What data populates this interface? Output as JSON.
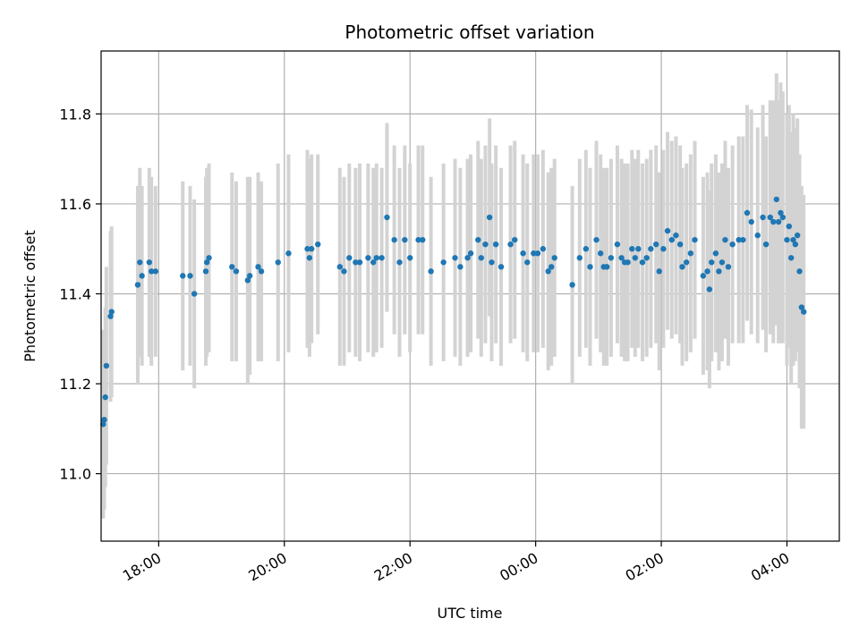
{
  "chart_data": {
    "type": "scatter",
    "title": "Photometric offset variation",
    "xlabel": "UTC time",
    "ylabel": "Photometric offset",
    "x_axis": {
      "unit": "UTC hours",
      "range": [
        "17:05",
        "04:50 (+1 day)"
      ],
      "ticks": [
        "18:00",
        "20:00",
        "22:00",
        "00:00",
        "02:00",
        "04:00"
      ]
    },
    "ylim": [
      10.85,
      11.94
    ],
    "yticks": [
      "11.0",
      "11.2",
      "11.4",
      "11.6",
      "11.8"
    ],
    "grid": true,
    "colors": {
      "point": "#1f77b4",
      "errorbar": "#d3d3d3",
      "grid": "#b0b0b0"
    },
    "series": [
      {
        "point_color": "#1f77b4",
        "errorbar_color": "#d3d3d3",
        "points": [
          [
            "17:07",
            11.11,
            0.21
          ],
          [
            "17:08",
            11.12,
            0.2
          ],
          [
            "17:09",
            11.17,
            0.2
          ],
          [
            "17:10",
            11.24,
            0.22
          ],
          [
            "17:14",
            11.35,
            0.19
          ],
          [
            "17:15",
            11.36,
            0.19
          ],
          [
            "17:40",
            11.42,
            0.22
          ],
          [
            "17:42",
            11.47,
            0.21
          ],
          [
            "17:44",
            11.44,
            0.2
          ],
          [
            "17:51",
            11.47,
            0.21
          ],
          [
            "17:53",
            11.45,
            0.21
          ],
          [
            "17:57",
            11.45,
            0.19
          ],
          [
            "18:23",
            11.44,
            0.21
          ],
          [
            "18:30",
            11.44,
            0.2
          ],
          [
            "18:34",
            11.4,
            0.21
          ],
          [
            "18:45",
            11.45,
            0.21
          ],
          [
            "18:46",
            11.47,
            0.21
          ],
          [
            "18:48",
            11.48,
            0.21
          ],
          [
            "19:10",
            11.46,
            0.21
          ],
          [
            "19:14",
            11.45,
            0.2
          ],
          [
            "19:25",
            11.43,
            0.23
          ],
          [
            "19:27",
            11.44,
            0.22
          ],
          [
            "19:35",
            11.46,
            0.21
          ],
          [
            "19:38",
            11.45,
            0.2
          ],
          [
            "19:54",
            11.47,
            0.22
          ],
          [
            "20:04",
            11.49,
            0.22
          ],
          [
            "20:22",
            11.5,
            0.22
          ],
          [
            "20:24",
            11.48,
            0.22
          ],
          [
            "20:26",
            11.5,
            0.21
          ],
          [
            "20:32",
            11.51,
            0.2
          ],
          [
            "20:53",
            11.46,
            0.22
          ],
          [
            "20:57",
            11.45,
            0.21
          ],
          [
            "21:02",
            11.48,
            0.21
          ],
          [
            "21:08",
            11.47,
            0.21
          ],
          [
            "21:12",
            11.47,
            0.22
          ],
          [
            "21:20",
            11.48,
            0.21
          ],
          [
            "21:25",
            11.47,
            0.21
          ],
          [
            "21:28",
            11.48,
            0.21
          ],
          [
            "21:33",
            11.48,
            0.2
          ],
          [
            "21:38",
            11.57,
            0.21
          ],
          [
            "21:45",
            11.52,
            0.21
          ],
          [
            "21:50",
            11.47,
            0.21
          ],
          [
            "21:55",
            11.52,
            0.21
          ],
          [
            "22:00",
            11.48,
            0.21
          ],
          [
            "22:08",
            11.52,
            0.21
          ],
          [
            "22:12",
            11.52,
            0.21
          ],
          [
            "22:20",
            11.45,
            0.21
          ],
          [
            "22:32",
            11.47,
            0.22
          ],
          [
            "22:43",
            11.48,
            0.22
          ],
          [
            "22:48",
            11.46,
            0.22
          ],
          [
            "22:55",
            11.48,
            0.22
          ],
          [
            "22:58",
            11.49,
            0.22
          ],
          [
            "23:05",
            11.52,
            0.22
          ],
          [
            "23:08",
            11.48,
            0.22
          ],
          [
            "23:12",
            11.51,
            0.22
          ],
          [
            "23:16",
            11.57,
            0.22
          ],
          [
            "23:18",
            11.47,
            0.22
          ],
          [
            "23:22",
            11.51,
            0.22
          ],
          [
            "23:27",
            11.46,
            0.22
          ],
          [
            "23:36",
            11.51,
            0.22
          ],
          [
            "23:40",
            11.52,
            0.22
          ],
          [
            "23:48",
            11.49,
            0.22
          ],
          [
            "23:52",
            11.47,
            0.22
          ],
          [
            "23:58",
            11.49,
            0.22
          ],
          [
            "00:02",
            11.49,
            0.22
          ],
          [
            "00:07",
            11.5,
            0.22
          ],
          [
            "00:12",
            11.45,
            0.22
          ],
          [
            "00:15",
            11.46,
            0.22
          ],
          [
            "00:18",
            11.48,
            0.22
          ],
          [
            "00:35",
            11.42,
            0.22
          ],
          [
            "00:42",
            11.48,
            0.22
          ],
          [
            "00:48",
            11.5,
            0.22
          ],
          [
            "00:52",
            11.46,
            0.22
          ],
          [
            "00:58",
            11.52,
            0.22
          ],
          [
            "01:02",
            11.49,
            0.22
          ],
          [
            "01:05",
            11.46,
            0.22
          ],
          [
            "01:08",
            11.46,
            0.22
          ],
          [
            "01:12",
            11.48,
            0.22
          ],
          [
            "01:18",
            11.51,
            0.22
          ],
          [
            "01:22",
            11.48,
            0.22
          ],
          [
            "01:25",
            11.47,
            0.22
          ],
          [
            "01:28",
            11.47,
            0.22
          ],
          [
            "01:32",
            11.5,
            0.22
          ],
          [
            "01:35",
            11.48,
            0.22
          ],
          [
            "01:38",
            11.5,
            0.22
          ],
          [
            "01:42",
            11.47,
            0.22
          ],
          [
            "01:46",
            11.48,
            0.22
          ],
          [
            "01:50",
            11.5,
            0.22
          ],
          [
            "01:55",
            11.51,
            0.22
          ],
          [
            "01:58",
            11.45,
            0.22
          ],
          [
            "02:02",
            11.5,
            0.22
          ],
          [
            "02:06",
            11.54,
            0.22
          ],
          [
            "02:10",
            11.52,
            0.22
          ],
          [
            "02:14",
            11.53,
            0.22
          ],
          [
            "02:18",
            11.51,
            0.22
          ],
          [
            "02:20",
            11.46,
            0.22
          ],
          [
            "02:24",
            11.47,
            0.22
          ],
          [
            "02:28",
            11.49,
            0.22
          ],
          [
            "02:32",
            11.52,
            0.22
          ],
          [
            "02:40",
            11.44,
            0.22
          ],
          [
            "02:44",
            11.45,
            0.22
          ],
          [
            "02:46",
            11.41,
            0.22
          ],
          [
            "02:48",
            11.47,
            0.22
          ],
          [
            "02:52",
            11.49,
            0.22
          ],
          [
            "02:55",
            11.45,
            0.22
          ],
          [
            "02:58",
            11.47,
            0.22
          ],
          [
            "03:01",
            11.52,
            0.22
          ],
          [
            "03:04",
            11.46,
            0.22
          ],
          [
            "03:08",
            11.51,
            0.22
          ],
          [
            "03:14",
            11.52,
            0.23
          ],
          [
            "03:18",
            11.52,
            0.23
          ],
          [
            "03:22",
            11.58,
            0.24
          ],
          [
            "03:26",
            11.56,
            0.25
          ],
          [
            "03:32",
            11.53,
            0.24
          ],
          [
            "03:37",
            11.57,
            0.25
          ],
          [
            "03:40",
            11.51,
            0.24
          ],
          [
            "03:44",
            11.57,
            0.26
          ],
          [
            "03:47",
            11.56,
            0.27
          ],
          [
            "03:50",
            11.61,
            0.28
          ],
          [
            "03:52",
            11.56,
            0.27
          ],
          [
            "03:54",
            11.58,
            0.29
          ],
          [
            "03:56",
            11.57,
            0.28
          ],
          [
            "04:00",
            11.52,
            0.28
          ],
          [
            "04:02",
            11.55,
            0.27
          ],
          [
            "04:04",
            11.48,
            0.28
          ],
          [
            "04:06",
            11.52,
            0.28
          ],
          [
            "04:08",
            11.51,
            0.26
          ],
          [
            "04:10",
            11.53,
            0.26
          ],
          [
            "04:12",
            11.45,
            0.26
          ],
          [
            "04:14",
            11.37,
            0.27
          ],
          [
            "04:16",
            11.36,
            0.26
          ]
        ]
      }
    ]
  }
}
